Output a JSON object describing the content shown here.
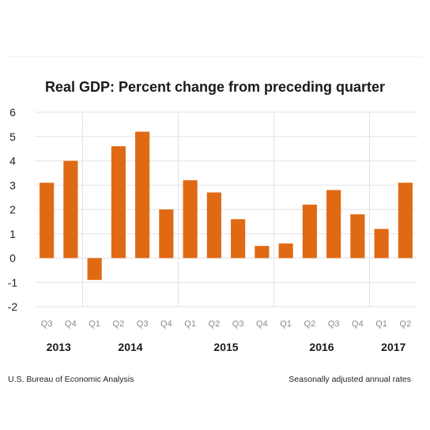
{
  "chart_data": {
    "type": "bar",
    "title": "Real GDP:  Percent change from preceding quarter",
    "categories": [
      "Q3",
      "Q4",
      "Q1",
      "Q2",
      "Q3",
      "Q4",
      "Q1",
      "Q2",
      "Q3",
      "Q4",
      "Q1",
      "Q2",
      "Q3",
      "Q4",
      "Q1",
      "Q2"
    ],
    "years": [
      {
        "label": "2013",
        "start": 0,
        "end": 1
      },
      {
        "label": "2014",
        "start": 2,
        "end": 5
      },
      {
        "label": "2015",
        "start": 6,
        "end": 9
      },
      {
        "label": "2016",
        "start": 10,
        "end": 13
      },
      {
        "label": "2017",
        "start": 14,
        "end": 15
      }
    ],
    "values": [
      3.1,
      4.0,
      -0.9,
      4.6,
      5.2,
      2.0,
      3.2,
      2.7,
      1.6,
      0.5,
      0.6,
      2.2,
      2.8,
      1.8,
      1.2,
      3.1
    ],
    "ylim": [
      -2,
      6
    ],
    "yticks": [
      6,
      5,
      4,
      3,
      2,
      1,
      0,
      -1,
      -2
    ],
    "xlabel": "",
    "ylabel": "",
    "grid": true,
    "bar_color": "#e06a14",
    "grid_color": "#e3e3e3"
  },
  "footer": {
    "source": "U.S. Bureau of Economic Analysis",
    "note": "Seasonally adjusted annual rates"
  }
}
